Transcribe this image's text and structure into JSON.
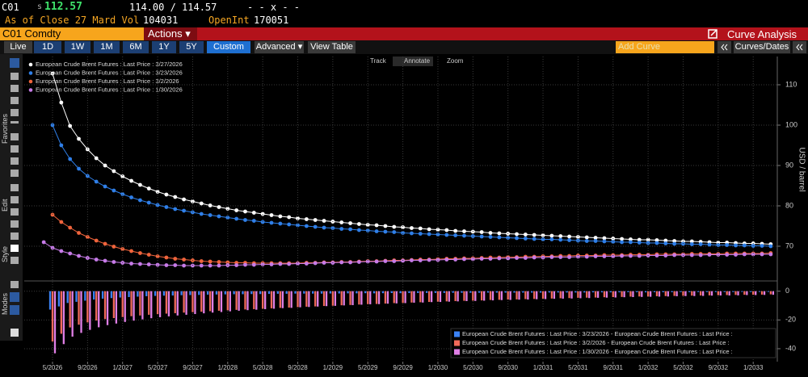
{
  "quote": {
    "ticker": "C01",
    "price_prefix": "s",
    "price": "112.57",
    "bid_ask": "114.00 / 114.57",
    "change": "- - x - -",
    "as_of": "As of Close 27 Mard Vol",
    "volume": "104031",
    "open_int_label": "OpenInt",
    "open_int": "170051"
  },
  "toolbar": {
    "security": "C01 Comdty",
    "actions": "Actions ▾",
    "function": "Curve Analysis"
  },
  "range_buttons": [
    "Live",
    "1D",
    "1W",
    "1M",
    "6M",
    "1Y",
    "5Y",
    "Custom"
  ],
  "controls": {
    "advanced": "Advanced ▾",
    "view_table": "View Table",
    "add_curve": "Add Curve",
    "curves_dates": "Curves/Dates"
  },
  "chart_tools": [
    "Track",
    "Annotate",
    "Zoom"
  ],
  "side_labels": [
    "Favorites",
    "Edit",
    "Style",
    "Modes"
  ],
  "chart_data": [
    {
      "type": "line",
      "markers": true,
      "grid": true,
      "legend": "upper left",
      "y_label": "USD / barrel",
      "ylim": [
        62,
        117
      ],
      "yticks": [
        70,
        80,
        90,
        100,
        110
      ],
      "x": [
        "4/2026",
        "5/2026",
        "6/2026",
        "7/2026",
        "8/2026",
        "9/2026",
        "10/2026",
        "11/2026",
        "12/2026",
        "1/2027",
        "2/2027",
        "3/2027",
        "4/2027",
        "5/2027",
        "6/2027",
        "7/2027",
        "8/2027",
        "9/2027",
        "10/2027",
        "11/2027",
        "12/2027",
        "1/2028",
        "2/2028",
        "3/2028",
        "4/2028",
        "5/2028",
        "6/2028",
        "7/2028",
        "8/2028",
        "9/2028",
        "10/2028",
        "11/2028",
        "12/2028",
        "1/2029",
        "2/2029",
        "3/2029",
        "4/2029",
        "5/2029",
        "6/2029",
        "7/2029",
        "8/2029",
        "9/2029",
        "10/2029",
        "11/2029",
        "12/2029",
        "1/2030",
        "2/2030",
        "3/2030",
        "4/2030",
        "5/2030",
        "6/2030",
        "7/2030",
        "8/2030",
        "9/2030",
        "10/2030",
        "11/2030",
        "12/2030",
        "1/2031",
        "2/2031",
        "3/2031",
        "4/2031",
        "5/2031",
        "6/2031",
        "7/2031",
        "8/2031",
        "9/2031",
        "10/2031",
        "11/2031",
        "12/2031",
        "1/2032",
        "2/2032",
        "3/2032",
        "4/2032",
        "5/2032",
        "6/2032",
        "7/2032",
        "8/2032",
        "9/2032",
        "10/2032",
        "11/2032",
        "12/2032",
        "1/2033",
        "2/2033",
        "3/2033"
      ],
      "series": [
        {
          "name": "European Crude Brent Futures : Last Price : 3/27/2026",
          "color": "#ffffff",
          "values": [
            null,
            112.8,
            105.6,
            99.8,
            96.6,
            94.0,
            91.8,
            90.0,
            88.6,
            87.3,
            86.2,
            85.2,
            84.3,
            83.5,
            82.8,
            82.2,
            81.6,
            81.1,
            80.6,
            80.1,
            79.7,
            79.3,
            78.9,
            78.6,
            78.3,
            78.0,
            77.7,
            77.4,
            77.2,
            76.9,
            76.7,
            76.5,
            76.3,
            76.1,
            75.9,
            75.7,
            75.5,
            75.3,
            75.2,
            75.0,
            74.8,
            74.7,
            74.5,
            74.4,
            74.2,
            74.1,
            74.0,
            73.8,
            73.7,
            73.6,
            73.5,
            73.3,
            73.2,
            73.1,
            73.0,
            72.9,
            72.8,
            72.7,
            72.6,
            72.5,
            72.4,
            72.3,
            72.2,
            72.1,
            72.0,
            71.9,
            71.8,
            71.7,
            71.6,
            71.6,
            71.5,
            71.4,
            71.3,
            71.2,
            71.2,
            71.1,
            71.0,
            70.9,
            70.9,
            70.8,
            70.7,
            70.7,
            70.6,
            70.5
          ]
        },
        {
          "name": "European Crude Brent Futures : Last Price : 3/23/2026",
          "color": "#2f7fe8",
          "values": [
            null,
            100.0,
            95.0,
            91.6,
            89.2,
            87.4,
            86.0,
            84.8,
            83.8,
            82.9,
            82.1,
            81.4,
            80.8,
            80.2,
            79.7,
            79.2,
            78.8,
            78.4,
            78.0,
            77.7,
            77.4,
            77.1,
            76.8,
            76.5,
            76.3,
            76.0,
            75.8,
            75.6,
            75.4,
            75.2,
            75.0,
            74.8,
            74.6,
            74.5,
            74.3,
            74.2,
            74.0,
            73.9,
            73.7,
            73.6,
            73.5,
            73.3,
            73.2,
            73.1,
            73.0,
            72.9,
            72.8,
            72.7,
            72.6,
            72.5,
            72.4,
            72.3,
            72.2,
            72.1,
            72.0,
            71.9,
            71.8,
            71.7,
            71.7,
            71.6,
            71.5,
            71.4,
            71.3,
            71.3,
            71.2,
            71.1,
            71.0,
            71.0,
            70.9,
            70.8,
            70.8,
            70.7,
            70.6,
            70.6,
            70.5,
            70.5,
            70.4,
            70.3,
            70.3,
            70.2,
            70.2,
            70.1,
            70.1,
            70.0
          ]
        },
        {
          "name": "European Crude Brent Futures : Last Price : 3/2/2026",
          "color": "#f0643c",
          "values": [
            null,
            77.8,
            76.0,
            74.6,
            73.3,
            72.3,
            71.4,
            70.6,
            69.9,
            69.3,
            68.8,
            68.3,
            67.9,
            67.5,
            67.2,
            66.9,
            66.7,
            66.5,
            66.3,
            66.2,
            66.1,
            66.0,
            65.9,
            65.9,
            65.8,
            65.8,
            65.8,
            65.8,
            65.8,
            65.8,
            65.9,
            65.9,
            66.0,
            66.0,
            66.1,
            66.1,
            66.2,
            66.3,
            66.3,
            66.4,
            66.5,
            66.5,
            66.6,
            66.7,
            66.7,
            66.8,
            66.9,
            66.9,
            67.0,
            67.0,
            67.1,
            67.2,
            67.2,
            67.3,
            67.3,
            67.4,
            67.4,
            67.5,
            67.5,
            67.6,
            67.6,
            67.7,
            67.7,
            67.7,
            67.8,
            67.8,
            67.8,
            67.9,
            67.9,
            67.9,
            68.0,
            68.0,
            68.0,
            68.0,
            68.1,
            68.1,
            68.1,
            68.1,
            68.2,
            68.2,
            68.2,
            68.2,
            68.2,
            68.3
          ]
        },
        {
          "name": "European Crude Brent Futures : Last Price : 1/30/2026",
          "color": "#c77be8",
          "values": [
            71.0,
            69.6,
            68.8,
            68.2,
            67.6,
            67.1,
            66.7,
            66.4,
            66.1,
            65.9,
            65.7,
            65.6,
            65.5,
            65.4,
            65.3,
            65.3,
            65.2,
            65.2,
            65.2,
            65.2,
            65.2,
            65.3,
            65.3,
            65.4,
            65.4,
            65.5,
            65.5,
            65.6,
            65.6,
            65.7,
            65.7,
            65.8,
            65.9,
            65.9,
            66.0,
            66.0,
            66.1,
            66.2,
            66.2,
            66.3,
            66.3,
            66.4,
            66.5,
            66.5,
            66.6,
            66.6,
            66.7,
            66.7,
            66.8,
            66.8,
            66.9,
            66.9,
            67.0,
            67.0,
            67.1,
            67.1,
            67.2,
            67.2,
            67.3,
            67.3,
            67.3,
            67.4,
            67.4,
            67.5,
            67.5,
            67.5,
            67.6,
            67.6,
            67.6,
            67.7,
            67.7,
            67.7,
            67.8,
            67.8,
            67.8,
            67.8,
            67.9,
            67.9,
            67.9,
            67.9,
            68.0,
            68.0,
            68.0,
            68.0
          ]
        }
      ]
    },
    {
      "type": "bar",
      "grid": true,
      "legend": "lower right",
      "ylim": [
        -49,
        6
      ],
      "yticks": [
        -40,
        -20,
        0
      ],
      "x": [
        "4/2026",
        "5/2026",
        "6/2026",
        "7/2026",
        "8/2026",
        "9/2026",
        "10/2026",
        "11/2026",
        "12/2026",
        "1/2027",
        "2/2027",
        "3/2027",
        "4/2027",
        "5/2027",
        "6/2027",
        "7/2027",
        "8/2027",
        "9/2027",
        "10/2027",
        "11/2027",
        "12/2027",
        "1/2028",
        "2/2028",
        "3/2028",
        "4/2028",
        "5/2028",
        "6/2028",
        "7/2028",
        "8/2028",
        "9/2028",
        "10/2028",
        "11/2028",
        "12/2028",
        "1/2029",
        "2/2029",
        "3/2029",
        "4/2029",
        "5/2029",
        "6/2029",
        "7/2029",
        "8/2029",
        "9/2029",
        "10/2029",
        "11/2029",
        "12/2029",
        "1/2030",
        "2/2030",
        "3/2030",
        "4/2030",
        "5/2030",
        "6/2030",
        "7/2030",
        "8/2030",
        "9/2030",
        "10/2030",
        "11/2030",
        "12/2030",
        "1/2031",
        "2/2031",
        "3/2031",
        "4/2031",
        "5/2031",
        "6/2031",
        "7/2031",
        "8/2031",
        "9/2031",
        "10/2031",
        "11/2031",
        "12/2031",
        "1/2032",
        "2/2032",
        "3/2032",
        "4/2032",
        "5/2032",
        "6/2032",
        "7/2032",
        "8/2032",
        "9/2032",
        "10/2032",
        "11/2032",
        "12/2032",
        "1/2033",
        "2/2033",
        "3/2033"
      ],
      "xticks": [
        "5/2026",
        "9/2026",
        "1/2027",
        "5/2027",
        "9/2027",
        "1/2028",
        "5/2028",
        "9/2028",
        "1/2029",
        "5/2029",
        "9/2029",
        "1/2030",
        "5/2030",
        "9/2030",
        "1/2031",
        "5/2031",
        "9/2031",
        "1/2032",
        "5/2032",
        "9/2032",
        "1/2033"
      ],
      "series": [
        {
          "name": "European Crude Brent Futures : Last Price : 3/23/2026 - European Crude Brent Futures : Last Price :",
          "color": "#3b82f6",
          "values": [
            null,
            -12.8,
            -10.6,
            -8.2,
            -7.4,
            -6.6,
            -5.8,
            -5.2,
            -4.8,
            -4.4,
            -4.1,
            -3.8,
            -3.5,
            -3.3,
            -3.1,
            -3.0,
            -2.8,
            -2.7,
            -2.6,
            -2.4,
            -2.3,
            -2.2,
            -2.1,
            -2.1,
            -2.0,
            -2.0,
            -1.9,
            -1.8,
            -1.8,
            -1.7,
            -1.7,
            -1.7,
            -1.7,
            -1.6,
            -1.6,
            -1.5,
            -1.5,
            -1.4,
            -1.5,
            -1.4,
            -1.3,
            -1.4,
            -1.3,
            -1.3,
            -1.2,
            -1.2,
            -1.2,
            -1.1,
            -1.1,
            -1.1,
            -1.1,
            -1.0,
            -1.0,
            -1.0,
            -1.0,
            -1.0,
            -1.0,
            -1.0,
            -0.9,
            -0.9,
            -0.9,
            -0.9,
            -0.9,
            -0.8,
            -0.8,
            -0.8,
            -0.8,
            -0.7,
            -0.7,
            -0.8,
            -0.7,
            -0.7,
            -0.7,
            -0.6,
            -0.7,
            -0.6,
            -0.6,
            -0.6,
            -0.6,
            -0.6,
            -0.5,
            -0.6,
            -0.5,
            -0.5
          ]
        },
        {
          "name": "European Crude Brent Futures : Last Price : 3/2/2026 - European Crude Brent Futures : Last Price :",
          "color": "#f06a5a",
          "values": [
            null,
            -35.0,
            -29.6,
            -25.2,
            -23.3,
            -21.7,
            -20.4,
            -19.4,
            -18.7,
            -18.0,
            -17.4,
            -16.9,
            -16.4,
            -16.0,
            -15.6,
            -15.3,
            -14.9,
            -14.6,
            -14.3,
            -13.9,
            -13.6,
            -13.3,
            -13.0,
            -12.7,
            -12.5,
            -12.2,
            -11.9,
            -11.6,
            -11.4,
            -11.1,
            -10.8,
            -10.6,
            -10.3,
            -10.1,
            -9.8,
            -9.6,
            -9.3,
            -9.0,
            -8.9,
            -8.6,
            -8.3,
            -8.2,
            -7.9,
            -7.7,
            -7.5,
            -7.3,
            -7.1,
            -6.9,
            -6.7,
            -6.6,
            -6.4,
            -6.1,
            -6.0,
            -5.8,
            -5.7,
            -5.5,
            -5.4,
            -5.2,
            -5.1,
            -4.9,
            -4.8,
            -4.6,
            -4.5,
            -4.4,
            -4.2,
            -4.1,
            -4.0,
            -3.8,
            -3.7,
            -3.7,
            -3.5,
            -3.4,
            -3.3,
            -3.2,
            -3.1,
            -3.0,
            -2.9,
            -2.8,
            -2.7,
            -2.6,
            -2.5,
            -2.5,
            -2.4,
            -2.2
          ]
        },
        {
          "name": "European Crude Brent Futures : Last Price : 1/30/2026 - European Crude Brent Futures : Last Price :",
          "color": "#e07fe6",
          "values": [
            null,
            -43.2,
            -36.8,
            -31.6,
            -29.0,
            -26.9,
            -25.1,
            -23.6,
            -22.5,
            -21.4,
            -20.5,
            -19.6,
            -18.8,
            -18.1,
            -17.5,
            -16.9,
            -16.4,
            -15.9,
            -15.4,
            -14.9,
            -14.5,
            -14.0,
            -13.6,
            -13.2,
            -12.9,
            -12.5,
            -12.2,
            -11.8,
            -11.6,
            -11.2,
            -11.0,
            -10.7,
            -10.4,
            -10.2,
            -9.9,
            -9.7,
            -9.4,
            -9.1,
            -9.0,
            -8.7,
            -8.5,
            -8.3,
            -8.0,
            -7.9,
            -7.6,
            -7.5,
            -7.3,
            -7.1,
            -6.9,
            -6.8,
            -6.6,
            -6.4,
            -6.2,
            -6.1,
            -5.9,
            -5.8,
            -5.6,
            -5.5,
            -5.3,
            -5.2,
            -5.1,
            -4.9,
            -4.8,
            -4.6,
            -4.5,
            -4.4,
            -4.2,
            -4.1,
            -4.0,
            -3.9,
            -3.8,
            -3.7,
            -3.5,
            -3.4,
            -3.4,
            -3.3,
            -3.1,
            -3.0,
            -3.0,
            -2.9,
            -2.7,
            -2.7,
            -2.6,
            -2.5
          ]
        }
      ]
    }
  ]
}
